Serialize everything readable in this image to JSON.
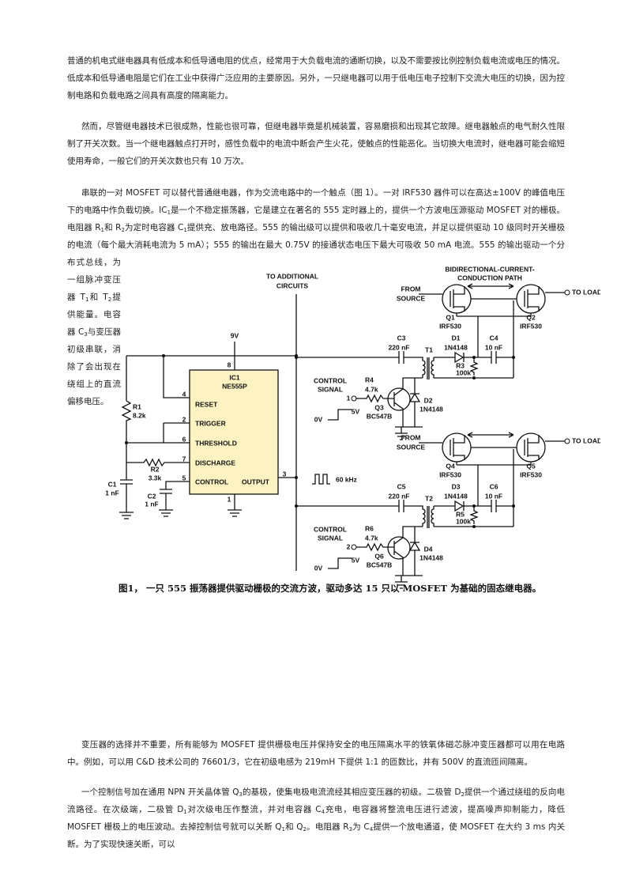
{
  "paragraphs": [
    [
      "普通的机电式继电器具有低成本和低导通电阻的优点，经常用于大负载电流的通断切换，以及不需要按比例控制负载电流或电压的情况。低成本和低导通电阻是它们在工业中获得广泛应用的主要原因。另外，一只继电器可以用于低电压电子控制下交流大电压的切换，因为控制电路和负载电路之间具有高度的隔离能力。"
    ],
    [
      "然而，尽管继电器技术已很成熟，性能也很可靠，但继电器毕竟是机械装置，容易磨损和出现其它故障。继电器触点的电气耐久性限制了开关次数。当一个继电器触点打开时，感性负载中的电流中断会产生火花，使触点的性能恶化。当切换大电流时，继电器可能会缩短使用寿命，一般它们的开关次数也只有 10 万次。"
    ],
    [
      "串联的一对 MOSFET 可以替代普通继电器，作为交流电路中的一个触点（图 1）。一对 IRF530 器件可以在高达±100V 的峰值电压下的电路中作负载切换。IC",
      {
        "sub": "1"
      },
      "是一个不稳定振荡器，它是建立在著名的 555 定时器上的，提供一个方波电压源驱动 MOSFET 对的栅极。电阻器 R",
      {
        "sub": "1"
      },
      "和 R",
      {
        "sub": "2"
      },
      "为定时电容器 C",
      {
        "sub": "1"
      },
      "提供充、放电路径。555 的输出级可以提供和吸收几十毫安电流，并足以提供驱动 10 级同时开关栅极的电流（每个最大消耗电流为 5 mA）；555 的输出在最大 0.75V 的接通状态电压下最大可吸收 50 mA 电流。555 的输出驱动一个分布式总线，为一组脉冲变压器 T",
      {
        "sub": "1"
      },
      "和 T",
      {
        "sub": "2"
      },
      "提供能量。电容器 C",
      {
        "sub": "3"
      },
      "与变压器初级串联，消除了会出现在绕组上的直流偏移电压。"
    ],
    [
      "变压器的选择并不重要，所有能够为 MOSFET 提供栅极电压并保持安全的电压隔离水平的铁氧体磁芯脉冲变压器都可以用在电路中。例如，可以用 C&D 技术公司的 76601/3，它在初级电感为 219mH 下提供 1:1 的匝数比，并有 500V 的直流匝间隔离。"
    ],
    [
      "一个控制信号加在通用 NPN 开关晶体管 Q",
      {
        "sub": "3"
      },
      "的基极，使集电极电流流经其相应变压器的初级。二极管 D",
      {
        "sub": "2"
      },
      "提供一个通过绕组的反向电流路径。在次级端，二极管 D",
      {
        "sub": "1"
      },
      "对次级电压作整流，并对电容器 C",
      {
        "sub": "4"
      },
      "充电，电容器将整流电压进行滤波，提高噪声抑制能力，降低 MOSFET 栅极上的电压波动。去掉控制信号就可以关断 Q",
      {
        "sub": "1"
      },
      "和 Q",
      {
        "sub": "2"
      },
      "。电阻器 R",
      {
        "sub": "3"
      },
      "为 C",
      {
        "sub": "4"
      },
      "提供一个放电通道，使 MOSFET 在大约 3  ms  内关断。为了实现快速关断，可以"
    ]
  ],
  "figure": {
    "caption": "图1，  一只 555 振荡器提供驱动栅极的交流方波，驱动多达 15 只以 MOSFET 为基础的固态继电器。",
    "labels": [
      "TO ADDITIONAL",
      "CIRCUITS",
      "9V",
      "8",
      "IC1",
      "NE555P",
      "4",
      "RESET",
      "2",
      "TRIGGER",
      "6",
      "THRESHOLD",
      "7",
      "DISCHARGE",
      "5",
      "CONTROL",
      "OUTPUT",
      "3",
      "1",
      "R1",
      "8.2k",
      "R2",
      "3.3k",
      "C1",
      "1 nF",
      "C2",
      "1 nF",
      "60 kHz",
      "BIDIRECTIONAL-CURRENT-",
      "CONDUCTION PATH",
      "FROM",
      "SOURCE",
      "TO LOAD",
      "Q1",
      "IRF530",
      "Q2",
      "IRF530",
      "C3",
      "220 nF",
      "T1",
      "D1",
      "1N4148",
      "C4",
      "10 nF",
      "R3",
      "100k",
      "CONTROL",
      "SIGNAL",
      "1",
      "R4",
      "4.7k",
      "Q3",
      "BC547B",
      "D2",
      "1N4148",
      "0V",
      "5V",
      "FROM",
      "SOURCE",
      "TO LOAD",
      "Q4",
      "IRF530",
      "Q5",
      "IRF530",
      "C5",
      "220 nF",
      "T2",
      "D3",
      "1N4148",
      "C6",
      "10 nF",
      "R5",
      "100k",
      "CONTROL",
      "SIGNAL",
      "2",
      "R6",
      "4.7k",
      "Q6",
      "BC547B",
      "D4",
      "1N4148",
      "0V",
      "5V"
    ]
  }
}
